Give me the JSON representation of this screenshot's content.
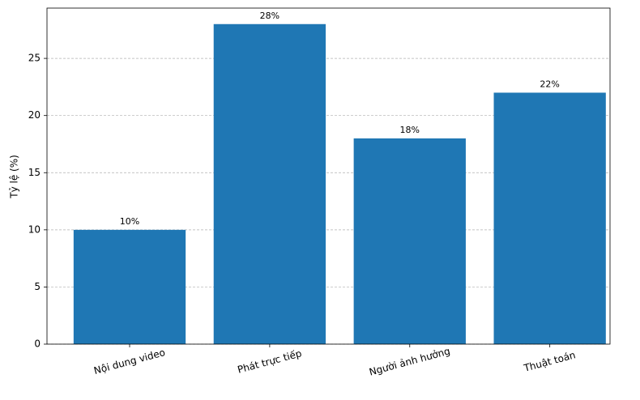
{
  "chart_data": {
    "type": "bar",
    "ylabel": "Tỷ lệ (%)",
    "categories": [
      "Nội dung video",
      "Phát trực tiếp",
      "Người ảnh hưởng",
      "Thuật toán"
    ],
    "values": [
      10,
      28,
      18,
      22
    ],
    "value_labels": [
      "10%",
      "28%",
      "18%",
      "22%"
    ],
    "color": "#1f77b4",
    "ylim": [
      0,
      29.4
    ],
    "yticks": [
      0,
      5,
      10,
      15,
      20,
      25
    ],
    "grid": true
  }
}
